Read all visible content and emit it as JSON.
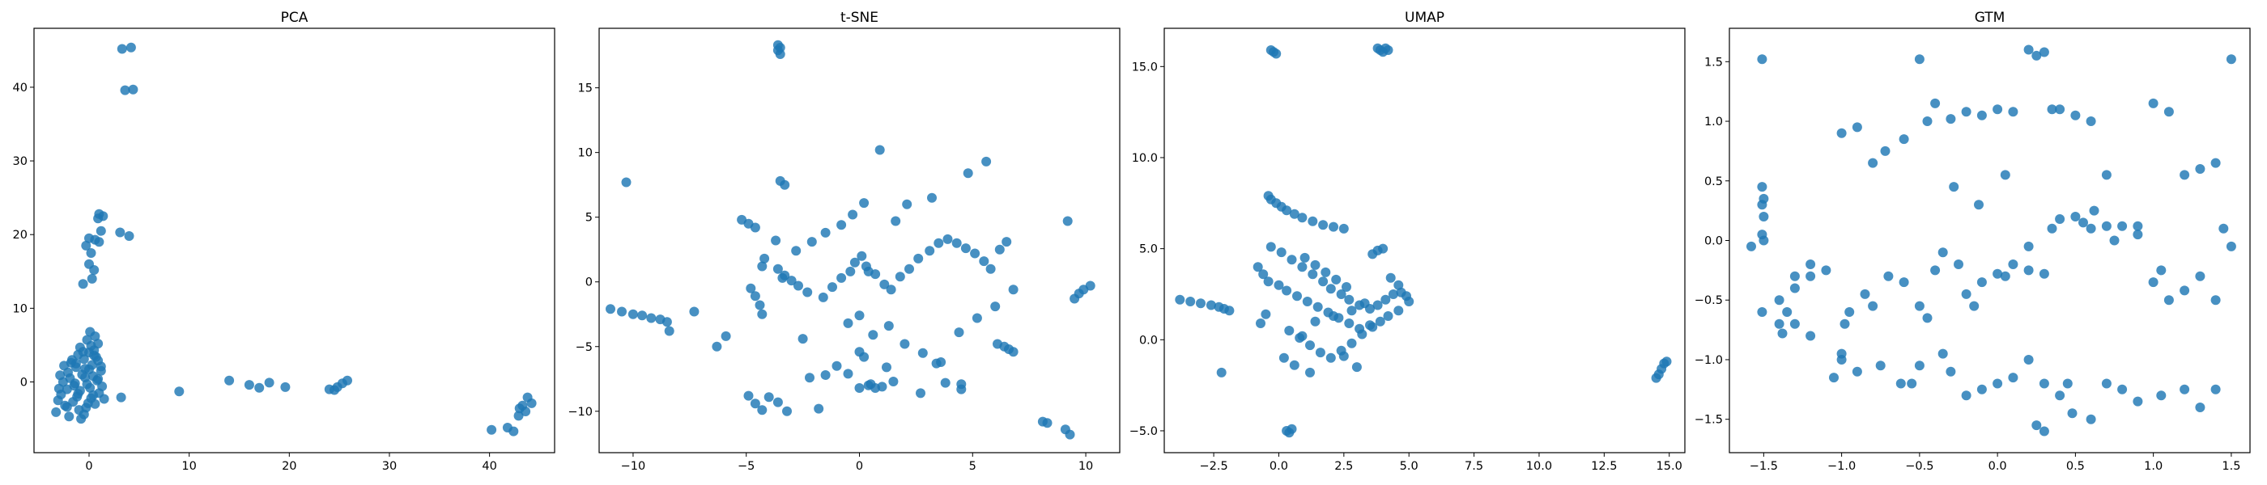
{
  "figure": {
    "marker_color": "#1f77b4",
    "marker_alpha": 0.82,
    "background": "#ffffff"
  },
  "chart_data": [
    {
      "type": "scatter",
      "title": "PCA",
      "xlabel": "",
      "ylabel": "",
      "xlim": [
        -5.5,
        46.5
      ],
      "ylim": [
        -9.6,
        48.0
      ],
      "xticks": [
        0,
        10,
        20,
        30,
        40
      ],
      "yticks": [
        0,
        10,
        20,
        30,
        40
      ],
      "grid": false,
      "series": [
        {
          "name": "points",
          "x": [
            3.3,
            4.2,
            3.6,
            4.4,
            1.0,
            1.4,
            0.9,
            1.2,
            0.0,
            0.6,
            1.0,
            4.0,
            3.1,
            -0.3,
            0.2,
            0.0,
            0.5,
            0.3,
            -0.6,
            0.1,
            0.6,
            -0.2,
            0.9,
            0.2,
            -0.9,
            0.5,
            0.0,
            -1.1,
            0.7,
            -0.5,
            0.9,
            -1.8,
            0.3,
            -1.3,
            -0.4,
            1.2,
            -2.1,
            -0.7,
            0.4,
            -1.9,
            0.8,
            -2.6,
            -0.2,
            -1.5,
            0.1,
            -2.2,
            -0.9,
            1.0,
            -2.8,
            -1.2,
            0.2,
            -3.1,
            -1.6,
            0.6,
            -2.4,
            -0.3,
            1.3,
            -1.0,
            -3.3,
            -0.5,
            1.5,
            -2.0,
            -0.8,
            0.0,
            -1.7,
            0.4,
            -2.9,
            -1.3,
            -0.6,
            0.9,
            -3.0,
            1.2,
            -0.1,
            -1.4,
            -2.5,
            0.5,
            -1.1,
            -0.4,
            -2.2,
            3.2,
            9.0,
            14.0,
            16.0,
            17.0,
            18.0,
            19.6,
            24.0,
            24.8,
            25.3,
            25.8,
            24.5,
            40.2,
            41.8,
            42.4,
            42.9,
            43.3,
            43.8,
            44.2,
            43.6,
            43.0
          ],
          "y": [
            45.2,
            45.4,
            39.6,
            39.7,
            22.8,
            22.5,
            22.2,
            20.5,
            19.5,
            19.3,
            19.0,
            19.8,
            20.3,
            18.5,
            17.5,
            16.0,
            15.2,
            14.0,
            13.3,
            6.8,
            6.2,
            5.7,
            5.2,
            4.9,
            4.7,
            4.3,
            4.0,
            3.7,
            3.4,
            3.1,
            2.9,
            2.6,
            2.3,
            2.0,
            1.8,
            1.5,
            1.3,
            1.0,
            0.8,
            0.5,
            0.2,
            0.0,
            -0.3,
            -0.5,
            -0.8,
            -1.0,
            -1.2,
            -1.5,
            -1.7,
            -2.0,
            -2.2,
            -2.5,
            -2.7,
            -3.0,
            -3.2,
            -3.5,
            -0.6,
            -3.8,
            -4.1,
            -4.4,
            -2.3,
            -4.7,
            -5.0,
            1.7,
            3.0,
            -1.8,
            0.9,
            2.5,
            4.1,
            0.4,
            -0.9,
            2.1,
            -2.9,
            -0.2,
            2.2,
            3.6,
            -1.6,
            0.6,
            -3.4,
            -2.1,
            -1.3,
            0.2,
            -0.4,
            -0.8,
            -0.1,
            -0.7,
            -1.0,
            -0.7,
            -0.2,
            0.2,
            -1.1,
            -6.5,
            -6.2,
            -6.7,
            -4.6,
            -3.2,
            -2.1,
            -2.9,
            -4.0,
            -3.6
          ]
        }
      ]
    },
    {
      "type": "scatter",
      "title": "t-SNE",
      "xlabel": "",
      "ylabel": "",
      "xlim": [
        -11.5,
        11.5
      ],
      "ylim": [
        -13.2,
        19.6
      ],
      "xticks": [
        -10,
        -5,
        0,
        5,
        10
      ],
      "yticks": [
        -10,
        -5,
        0,
        5,
        10,
        15
      ],
      "grid": false,
      "series": [
        {
          "name": "points",
          "x": [
            -3.6,
            -3.6,
            -3.5,
            -3.5,
            -10.3,
            -11.0,
            -10.5,
            -10.0,
            -9.6,
            -9.2,
            -8.8,
            -8.5,
            -8.4,
            -7.3,
            -5.2,
            -4.9,
            -4.6,
            -4.3,
            -3.5,
            -3.3,
            -3.4,
            -4.8,
            -4.6,
            -4.4,
            -4.3,
            -4.2,
            -3.6,
            -3.3,
            -3.0,
            -2.7,
            -2.3,
            -1.6,
            -1.2,
            -0.8,
            -0.4,
            -0.2,
            0.1,
            0.3,
            0.7,
            1.1,
            1.4,
            1.8,
            2.2,
            2.6,
            3.1,
            3.5,
            3.9,
            4.3,
            4.7,
            5.1,
            5.5,
            5.8,
            6.2,
            6.5,
            0.9,
            0.2,
            -0.3,
            -0.8,
            -1.5,
            -2.1,
            -2.8,
            -0.5,
            0.0,
            0.6,
            1.3,
            2.0,
            2.8,
            3.6,
            4.4,
            5.2,
            6.0,
            6.8,
            0.4,
            1.6,
            3.2,
            4.8,
            5.6,
            6.1,
            6.4,
            6.6,
            6.8,
            0.2,
            0.5,
            1.0,
            -1.0,
            -0.5,
            0.0,
            0.4,
            1.5,
            2.7,
            3.8,
            4.5,
            -4.9,
            -4.6,
            -4.3,
            -4.0,
            -3.6,
            -3.2,
            -2.2,
            -1.5,
            0.0,
            1.2,
            3.4,
            4.5,
            8.1,
            8.3,
            9.1,
            9.3,
            9.5,
            9.7,
            9.9,
            10.2,
            9.2,
            -6.3,
            -5.9,
            -2.5,
            -1.8,
            0.7,
            -3.7,
            2.1
          ],
          "y": [
            18.3,
            17.9,
            17.6,
            18.1,
            7.7,
            -2.1,
            -2.3,
            -2.5,
            -2.6,
            -2.8,
            -2.9,
            -3.1,
            -3.8,
            -2.3,
            4.8,
            4.5,
            4.2,
            1.2,
            7.8,
            7.5,
            0.3,
            -0.5,
            -1.1,
            -1.8,
            -2.5,
            1.8,
            1.0,
            0.5,
            0.1,
            -0.3,
            -0.8,
            -1.2,
            -0.4,
            0.3,
            0.8,
            1.5,
            2.0,
            1.2,
            0.6,
            -0.2,
            -0.6,
            0.4,
            1.0,
            1.8,
            2.4,
            3.0,
            3.3,
            3.0,
            2.6,
            2.2,
            1.6,
            1.0,
            2.5,
            3.1,
            10.2,
            6.1,
            5.2,
            4.4,
            3.8,
            3.1,
            2.4,
            -3.2,
            -2.6,
            -4.1,
            -3.4,
            -4.8,
            -5.5,
            -6.2,
            -3.9,
            -2.8,
            -1.9,
            -0.6,
            0.8,
            4.7,
            6.5,
            8.4,
            9.3,
            -4.8,
            -5.0,
            -5.2,
            -5.4,
            -5.8,
            -7.9,
            -8.1,
            -6.5,
            -7.1,
            -8.2,
            -8.0,
            -7.7,
            -8.6,
            -7.8,
            -7.9,
            -8.8,
            -9.4,
            -9.9,
            -8.9,
            -9.3,
            -10.0,
            -7.4,
            -7.2,
            -5.4,
            -6.6,
            -6.3,
            -8.3,
            -10.8,
            -10.9,
            -11.4,
            -11.8,
            -1.3,
            -0.9,
            -0.6,
            -0.3,
            4.7,
            -5.0,
            -4.2,
            -4.4,
            -9.8,
            -8.2,
            3.2,
            6.0
          ]
        }
      ]
    },
    {
      "type": "scatter",
      "title": "UMAP",
      "xlabel": "",
      "ylabel": "",
      "xlim": [
        -4.4,
        15.6
      ],
      "ylim": [
        -6.2,
        17.1
      ],
      "xticks": [
        -2.5,
        0.0,
        2.5,
        5.0,
        7.5,
        10.0,
        12.5,
        15.0
      ],
      "yticks": [
        -5,
        0,
        5,
        10,
        15
      ],
      "grid": false,
      "series": [
        {
          "name": "points",
          "x": [
            -0.3,
            -0.2,
            -0.1,
            3.8,
            3.9,
            4.0,
            4.1,
            4.2,
            -3.8,
            -3.4,
            -3.0,
            -2.6,
            -2.3,
            -2.1,
            -1.9,
            -2.2,
            -0.4,
            -0.3,
            -0.1,
            0.1,
            0.3,
            0.6,
            0.9,
            1.3,
            1.7,
            2.1,
            2.5,
            -0.8,
            -0.6,
            -0.4,
            -0.5,
            -0.7,
            -0.3,
            0.1,
            0.5,
            0.9,
            1.3,
            1.7,
            2.0,
            2.4,
            2.7,
            3.1,
            3.5,
            3.8,
            4.1,
            4.4,
            4.7,
            4.9,
            5.0,
            4.6,
            4.2,
            3.9,
            3.5,
            3.1,
            2.7,
            2.3,
            1.9,
            1.5,
            1.1,
            0.7,
            0.3,
            0.0,
            0.4,
            0.8,
            1.2,
            1.6,
            2.0,
            2.4,
            2.8,
            3.2,
            3.6,
            1.0,
            1.4,
            1.8,
            2.2,
            2.6,
            0.2,
            0.6,
            3.6,
            3.8,
            4.0,
            4.3,
            4.6,
            0.3,
            0.4,
            0.5,
            1.4,
            2.1,
            2.8,
            3.3,
            14.5,
            14.6,
            14.7,
            14.8,
            14.9,
            1.2,
            2.5,
            3.0,
            0.9
          ],
          "y": [
            15.9,
            15.8,
            15.7,
            16.0,
            15.9,
            15.8,
            16.0,
            15.9,
            2.2,
            2.1,
            2.0,
            1.9,
            1.8,
            1.7,
            1.6,
            -1.8,
            7.9,
            7.7,
            7.5,
            7.3,
            7.1,
            6.9,
            6.7,
            6.5,
            6.3,
            6.2,
            6.1,
            4.0,
            3.6,
            3.2,
            1.4,
            0.9,
            5.1,
            4.8,
            4.4,
            4.0,
            3.6,
            3.2,
            2.8,
            2.5,
            2.2,
            1.9,
            1.7,
            1.9,
            2.2,
            2.5,
            2.6,
            2.4,
            2.1,
            1.6,
            1.3,
            1.0,
            0.8,
            0.6,
            0.9,
            1.2,
            1.5,
            1.8,
            2.1,
            2.4,
            2.7,
            3.0,
            0.5,
            0.1,
            -0.3,
            -0.7,
            -1.0,
            -0.6,
            -0.2,
            0.3,
            0.7,
            4.5,
            4.1,
            3.7,
            3.3,
            2.9,
            -1.0,
            -1.4,
            4.7,
            4.9,
            5.0,
            3.4,
            3.0,
            -5.0,
            -5.1,
            -4.9,
            1.0,
            1.3,
            1.6,
            2.0,
            -2.1,
            -1.9,
            -1.6,
            -1.3,
            -1.2,
            -1.8,
            -0.9,
            -1.5,
            0.2
          ]
        }
      ]
    },
    {
      "type": "scatter",
      "title": "GTM",
      "xlabel": "",
      "ylabel": "",
      "xlim": [
        -1.72,
        1.62
      ],
      "ylim": [
        -1.78,
        1.78
      ],
      "xticks": [
        -1.5,
        -1.0,
        -0.5,
        0.0,
        0.5,
        1.0,
        1.5
      ],
      "yticks": [
        -1.5,
        -1.0,
        -0.5,
        0.0,
        0.5,
        1.0,
        1.5
      ],
      "grid": false,
      "series": [
        {
          "name": "points",
          "x": [
            -1.51,
            -1.51,
            -1.5,
            -1.5,
            -1.51,
            -1.58,
            -1.51,
            -1.4,
            -1.38,
            -1.3,
            -1.2,
            -1.1,
            -1.0,
            -0.9,
            -0.8,
            -0.72,
            -0.6,
            -0.5,
            -0.45,
            -0.4,
            -0.3,
            -0.2,
            -0.1,
            0.0,
            0.1,
            0.2,
            0.25,
            0.3,
            0.35,
            0.4,
            0.5,
            0.6,
            0.7,
            0.8,
            0.9,
            1.0,
            1.1,
            1.2,
            1.3,
            1.4,
            1.5,
            1.45,
            1.5,
            -1.51,
            -1.5,
            -1.4,
            -1.35,
            -1.3,
            -1.2,
            -1.05,
            -1.0,
            -0.98,
            -0.95,
            -0.85,
            -0.8,
            -0.7,
            -0.6,
            -0.5,
            -0.45,
            -0.4,
            -0.35,
            -0.25,
            -0.2,
            -0.15,
            -0.1,
            0.0,
            0.05,
            0.1,
            0.2,
            0.3,
            0.35,
            0.4,
            0.5,
            0.55,
            0.6,
            0.7,
            0.75,
            0.9,
            1.0,
            1.05,
            1.1,
            1.2,
            1.3,
            1.4,
            -1.3,
            -1.2,
            -1.0,
            -0.9,
            -0.75,
            -0.62,
            -0.55,
            -0.5,
            -0.35,
            -0.3,
            -0.2,
            -0.1,
            0.0,
            0.1,
            0.2,
            0.3,
            0.4,
            0.48,
            0.6,
            0.7,
            0.8,
            0.9,
            1.05,
            1.2,
            1.3,
            1.4,
            0.25,
            0.3,
            0.45,
            0.2,
            0.05,
            -0.28,
            -0.12,
            0.62
          ],
          "y": [
            1.52,
            0.45,
            0.35,
            0.2,
            0.05,
            -0.05,
            -0.6,
            -0.7,
            -0.78,
            -0.3,
            -0.2,
            -0.25,
            0.9,
            0.95,
            0.65,
            0.75,
            0.85,
            1.52,
            1.0,
            1.15,
            1.02,
            1.08,
            1.05,
            1.1,
            1.08,
            1.6,
            1.55,
            1.58,
            1.1,
            1.1,
            1.05,
            1.0,
            0.55,
            0.12,
            0.05,
            1.15,
            1.08,
            0.55,
            0.6,
            0.65,
            1.52,
            0.1,
            -0.05,
            0.3,
            0.0,
            -0.5,
            -0.6,
            -0.4,
            -0.3,
            -1.15,
            -0.95,
            -0.7,
            -0.6,
            -0.45,
            -0.55,
            -0.3,
            -0.35,
            -0.55,
            -0.65,
            -0.25,
            -0.1,
            -0.2,
            -0.45,
            -0.55,
            -0.35,
            -0.28,
            -0.3,
            -0.2,
            -0.25,
            -0.28,
            0.1,
            0.18,
            0.2,
            0.15,
            0.1,
            0.12,
            0.0,
            0.12,
            -0.35,
            -0.25,
            -0.5,
            -0.42,
            -0.3,
            -0.5,
            -0.7,
            -0.8,
            -1.0,
            -1.1,
            -1.05,
            -1.2,
            -1.2,
            -1.05,
            -0.95,
            -1.1,
            -1.3,
            -1.25,
            -1.2,
            -1.15,
            -1.0,
            -1.2,
            -1.3,
            -1.45,
            -1.5,
            -1.2,
            -1.25,
            -1.35,
            -1.3,
            -1.25,
            -1.4,
            -1.25,
            -1.55,
            -1.6,
            -1.2,
            -0.05,
            0.55,
            0.45,
            0.3,
            0.25
          ]
        }
      ]
    }
  ]
}
